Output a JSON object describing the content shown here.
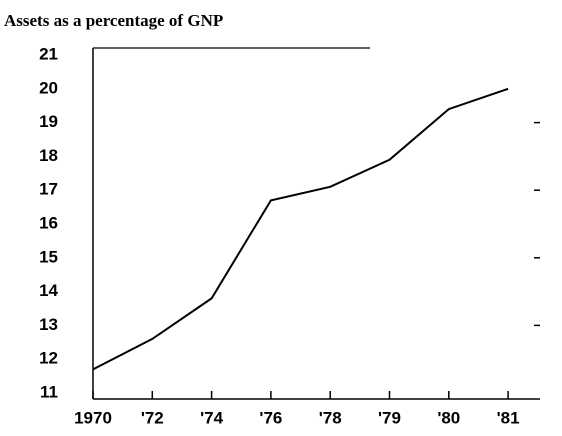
{
  "chart_data": {
    "type": "line",
    "title": "Assets as a percentage of GNP",
    "categories": [
      "1970",
      "'72",
      "'74",
      "'76",
      "'78",
      "'79",
      "'80",
      "'81"
    ],
    "values": [
      11.7,
      12.6,
      13.8,
      16.7,
      17.1,
      17.9,
      19.4,
      20.0
    ],
    "color": "#000000",
    "ylim": [
      11,
      21
    ],
    "yticks": [
      21,
      20,
      19,
      18,
      17,
      16,
      15,
      14,
      13,
      12,
      11
    ],
    "grid": false
  }
}
